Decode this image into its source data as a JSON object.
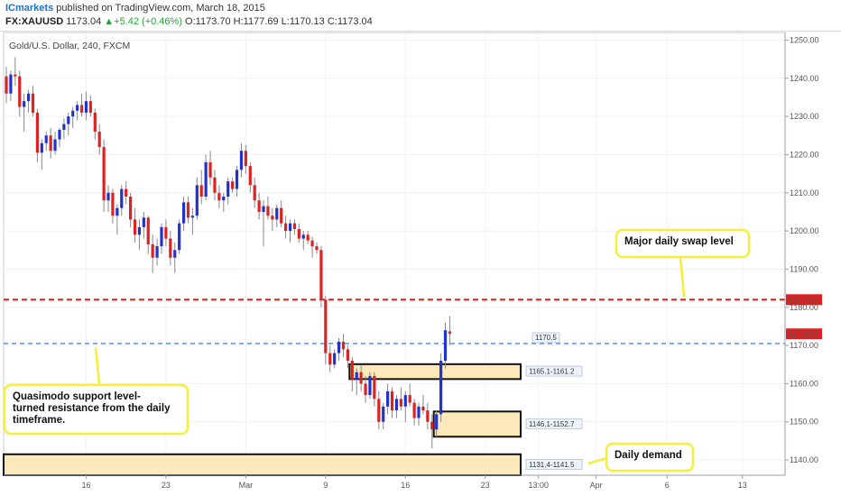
{
  "header": {
    "publisher": "ICmarkets",
    "published_text": "published on TradingView.com, March 18, 2015",
    "symbol": "FX:XAUUSD",
    "last": "1173.04",
    "change": "+5.42 (+0.46%)",
    "ohlc": "O:1173.70 H:1177.69 L:1170.13 C:1173.04"
  },
  "chart_data": {
    "type": "candlestick",
    "title": "Gold/U.S. Dollar, 240, FXCM",
    "ylim": [
      1136,
      1252
    ],
    "y_ticks": [
      1140,
      1150,
      1160,
      1170,
      1180,
      1190,
      1200,
      1210,
      1220,
      1230,
      1240,
      1250
    ],
    "x_ticks": [
      {
        "label": "16",
        "bar": 18
      },
      {
        "label": "23",
        "bar": 36
      },
      {
        "label": "Mar",
        "bar": 54
      },
      {
        "label": "9",
        "bar": 72
      },
      {
        "label": "16",
        "bar": 90
      },
      {
        "label": "23",
        "bar": 108
      },
      {
        "label": "13:00",
        "bar": 120
      },
      {
        "label": "Apr",
        "bar": 133
      },
      {
        "label": "6",
        "bar": 149
      },
      {
        "label": "13",
        "bar": 166
      }
    ],
    "bar_range": [
      0,
      175
    ],
    "bull_color": "#2233cc",
    "bear_color": "#dd2222",
    "levels": [
      {
        "price": 1182.0,
        "color": "#e02020",
        "label": "1182.00"
      },
      {
        "price": 1170.5,
        "color": "#4a86d0",
        "label": "1170.5"
      }
    ],
    "last_price": {
      "price": 1173.04,
      "label": "1173.04",
      "color": "#e02020"
    },
    "zones": [
      {
        "top": 1165.1,
        "bottom": 1161.2,
        "label": "1165.1-1161.2",
        "bar_start": 78,
        "bar_end": 116
      },
      {
        "top": 1152.7,
        "bottom": 1146.1,
        "label": "1146.1-1152.7",
        "bar_start": 97,
        "bar_end": 116
      },
      {
        "top": 1141.5,
        "bottom": 1131.4,
        "label": "1131.4-1141.5",
        "bar_start": 0,
        "bar_end": 116
      }
    ],
    "annotations": [
      {
        "lines": [
          "Major daily swap level"
        ]
      },
      {
        "lines": [
          "Quasimodo support level-",
          "turned resistance from the daily",
          "timeframe."
        ]
      },
      {
        "lines": [
          "Daily demand"
        ]
      }
    ],
    "candles": [
      [
        1240.5,
        1243.0,
        1233.5,
        1236.0
      ],
      [
        1236.0,
        1242.0,
        1234.0,
        1241.0
      ],
      [
        1241.0,
        1245.5,
        1238.0,
        1240.5
      ],
      [
        1240.5,
        1242.0,
        1230.0,
        1232.5
      ],
      [
        1232.5,
        1236.0,
        1226.0,
        1234.0
      ],
      [
        1234.0,
        1237.0,
        1231.0,
        1236.0
      ],
      [
        1236.0,
        1238.0,
        1230.0,
        1231.0
      ],
      [
        1231.0,
        1232.0,
        1218.0,
        1220.5
      ],
      [
        1220.5,
        1224.0,
        1216.0,
        1223.0
      ],
      [
        1223.0,
        1226.0,
        1221.0,
        1225.0
      ],
      [
        1225.0,
        1227.0,
        1219.0,
        1221.0
      ],
      [
        1221.0,
        1226.0,
        1220.0,
        1224.0
      ],
      [
        1224.0,
        1227.0,
        1222.0,
        1226.5
      ],
      [
        1226.5,
        1229.5,
        1224.0,
        1228.0
      ],
      [
        1228.0,
        1231.0,
        1225.0,
        1230.0
      ],
      [
        1230.0,
        1232.5,
        1227.0,
        1231.5
      ],
      [
        1231.5,
        1234.0,
        1229.0,
        1233.0
      ],
      [
        1233.0,
        1236.0,
        1230.0,
        1231.0
      ],
      [
        1231.0,
        1236.5,
        1229.0,
        1234.0
      ],
      [
        1234.0,
        1235.5,
        1230.0,
        1231.0
      ],
      [
        1231.0,
        1232.0,
        1224.0,
        1226.0
      ],
      [
        1226.0,
        1228.0,
        1220.0,
        1222.0
      ],
      [
        1222.0,
        1224.0,
        1205.0,
        1208.0
      ],
      [
        1208.0,
        1212.0,
        1205.0,
        1210.0
      ],
      [
        1210.0,
        1211.0,
        1202.0,
        1204.0
      ],
      [
        1204.0,
        1207.0,
        1199.0,
        1206.0
      ],
      [
        1206.0,
        1212.0,
        1204.0,
        1211.0
      ],
      [
        1211.0,
        1213.0,
        1207.0,
        1209.0
      ],
      [
        1209.0,
        1210.0,
        1201.0,
        1203.0
      ],
      [
        1203.0,
        1206.0,
        1197.0,
        1199.0
      ],
      [
        1199.0,
        1203.0,
        1195.0,
        1201.0
      ],
      [
        1201.0,
        1205.0,
        1198.0,
        1203.5
      ],
      [
        1203.5,
        1204.0,
        1194.0,
        1196.5
      ],
      [
        1196.5,
        1199.0,
        1189.0,
        1193.0
      ],
      [
        1193.0,
        1198.0,
        1191.0,
        1196.0
      ],
      [
        1196.0,
        1202.0,
        1194.0,
        1201.0
      ],
      [
        1201.0,
        1203.0,
        1196.0,
        1198.0
      ],
      [
        1198.0,
        1200.0,
        1191.0,
        1193.0
      ],
      [
        1193.0,
        1197.0,
        1189.0,
        1195.0
      ],
      [
        1195.0,
        1203.0,
        1194.0,
        1202.0
      ],
      [
        1202.0,
        1209.0,
        1200.0,
        1207.5
      ],
      [
        1207.5,
        1209.0,
        1202.0,
        1203.5
      ],
      [
        1203.5,
        1206.0,
        1199.0,
        1204.0
      ],
      [
        1204.0,
        1214.0,
        1203.0,
        1212.0
      ],
      [
        1212.0,
        1216.0,
        1207.0,
        1209.0
      ],
      [
        1209.0,
        1220.0,
        1208.0,
        1218.0
      ],
      [
        1218.0,
        1221.0,
        1212.0,
        1214.0
      ],
      [
        1214.0,
        1216.0,
        1208.0,
        1210.0
      ],
      [
        1210.0,
        1212.0,
        1206.0,
        1208.0
      ],
      [
        1208.0,
        1210.0,
        1205.0,
        1209.0
      ],
      [
        1209.0,
        1214.0,
        1207.0,
        1213.0
      ],
      [
        1213.0,
        1214.0,
        1210.0,
        1211.0
      ],
      [
        1211.0,
        1217.0,
        1209.0,
        1216.0
      ],
      [
        1216.0,
        1223.0,
        1214.0,
        1221.0
      ],
      [
        1221.0,
        1222.5,
        1215.0,
        1217.0
      ],
      [
        1217.0,
        1218.0,
        1210.0,
        1212.0
      ],
      [
        1212.0,
        1214.0,
        1206.0,
        1208.0
      ],
      [
        1208.0,
        1210.0,
        1203.0,
        1205.0
      ],
      [
        1205.0,
        1208.0,
        1196.0,
        1206.5
      ],
      [
        1206.5,
        1209.0,
        1203.0,
        1204.0
      ],
      [
        1204.0,
        1206.0,
        1200.0,
        1203.0
      ],
      [
        1203.0,
        1207.0,
        1201.0,
        1206.0
      ],
      [
        1206.0,
        1208.0,
        1201.0,
        1202.0
      ],
      [
        1202.0,
        1204.0,
        1198.0,
        1200.0
      ],
      [
        1200.0,
        1203.0,
        1197.0,
        1202.0
      ],
      [
        1202.0,
        1203.0,
        1199.0,
        1200.5
      ],
      [
        1200.5,
        1202.0,
        1197.0,
        1198.0
      ],
      [
        1198.0,
        1200.0,
        1195.0,
        1199.0
      ],
      [
        1199.0,
        1200.0,
        1196.5,
        1197.5
      ],
      [
        1197.5,
        1198.5,
        1193.0,
        1196.0
      ],
      [
        1196.0,
        1197.0,
        1194.0,
        1195.0
      ],
      [
        1195.0,
        1196.0,
        1180.0,
        1182.0
      ],
      [
        1182.0,
        1183.0,
        1165.0,
        1168.0
      ],
      [
        1168.0,
        1170.0,
        1163.0,
        1165.0
      ],
      [
        1165.0,
        1169.0,
        1164.0,
        1168.0
      ],
      [
        1168.0,
        1172.0,
        1166.0,
        1171.0
      ],
      [
        1171.0,
        1173.0,
        1167.0,
        1169.0
      ],
      [
        1169.0,
        1170.0,
        1164.0,
        1166.0
      ],
      [
        1166.0,
        1167.0,
        1158.0,
        1161.0
      ],
      [
        1161.0,
        1164.0,
        1157.0,
        1163.0
      ],
      [
        1163.0,
        1165.0,
        1158.0,
        1160.0
      ],
      [
        1160.0,
        1162.0,
        1155.0,
        1157.0
      ],
      [
        1157.0,
        1163.0,
        1156.0,
        1162.0
      ],
      [
        1162.0,
        1163.0,
        1154.0,
        1156.0
      ],
      [
        1156.0,
        1158.0,
        1148.0,
        1150.0
      ],
      [
        1150.0,
        1155.0,
        1148.0,
        1154.0
      ],
      [
        1154.0,
        1160.0,
        1152.0,
        1158.0
      ],
      [
        1158.0,
        1159.0,
        1151.0,
        1153.0
      ],
      [
        1153.0,
        1157.0,
        1151.0,
        1156.0
      ],
      [
        1156.0,
        1159.0,
        1153.0,
        1154.0
      ],
      [
        1154.0,
        1158.0,
        1150.0,
        1157.0
      ],
      [
        1157.0,
        1160.0,
        1154.0,
        1155.0
      ],
      [
        1155.0,
        1156.0,
        1149.0,
        1151.0
      ],
      [
        1151.0,
        1155.0,
        1149.0,
        1154.0
      ],
      [
        1154.0,
        1157.0,
        1152.0,
        1153.0
      ],
      [
        1153.0,
        1155.0,
        1148.0,
        1150.0
      ],
      [
        1150.0,
        1152.0,
        1143.0,
        1148.0
      ],
      [
        1148.0,
        1153.0,
        1146.0,
        1152.0
      ],
      [
        1152.0,
        1168.0,
        1150.0,
        1166.0
      ],
      [
        1166.0,
        1176.0,
        1164.0,
        1174.0
      ],
      [
        1173.7,
        1177.69,
        1170.13,
        1173.04
      ]
    ]
  }
}
